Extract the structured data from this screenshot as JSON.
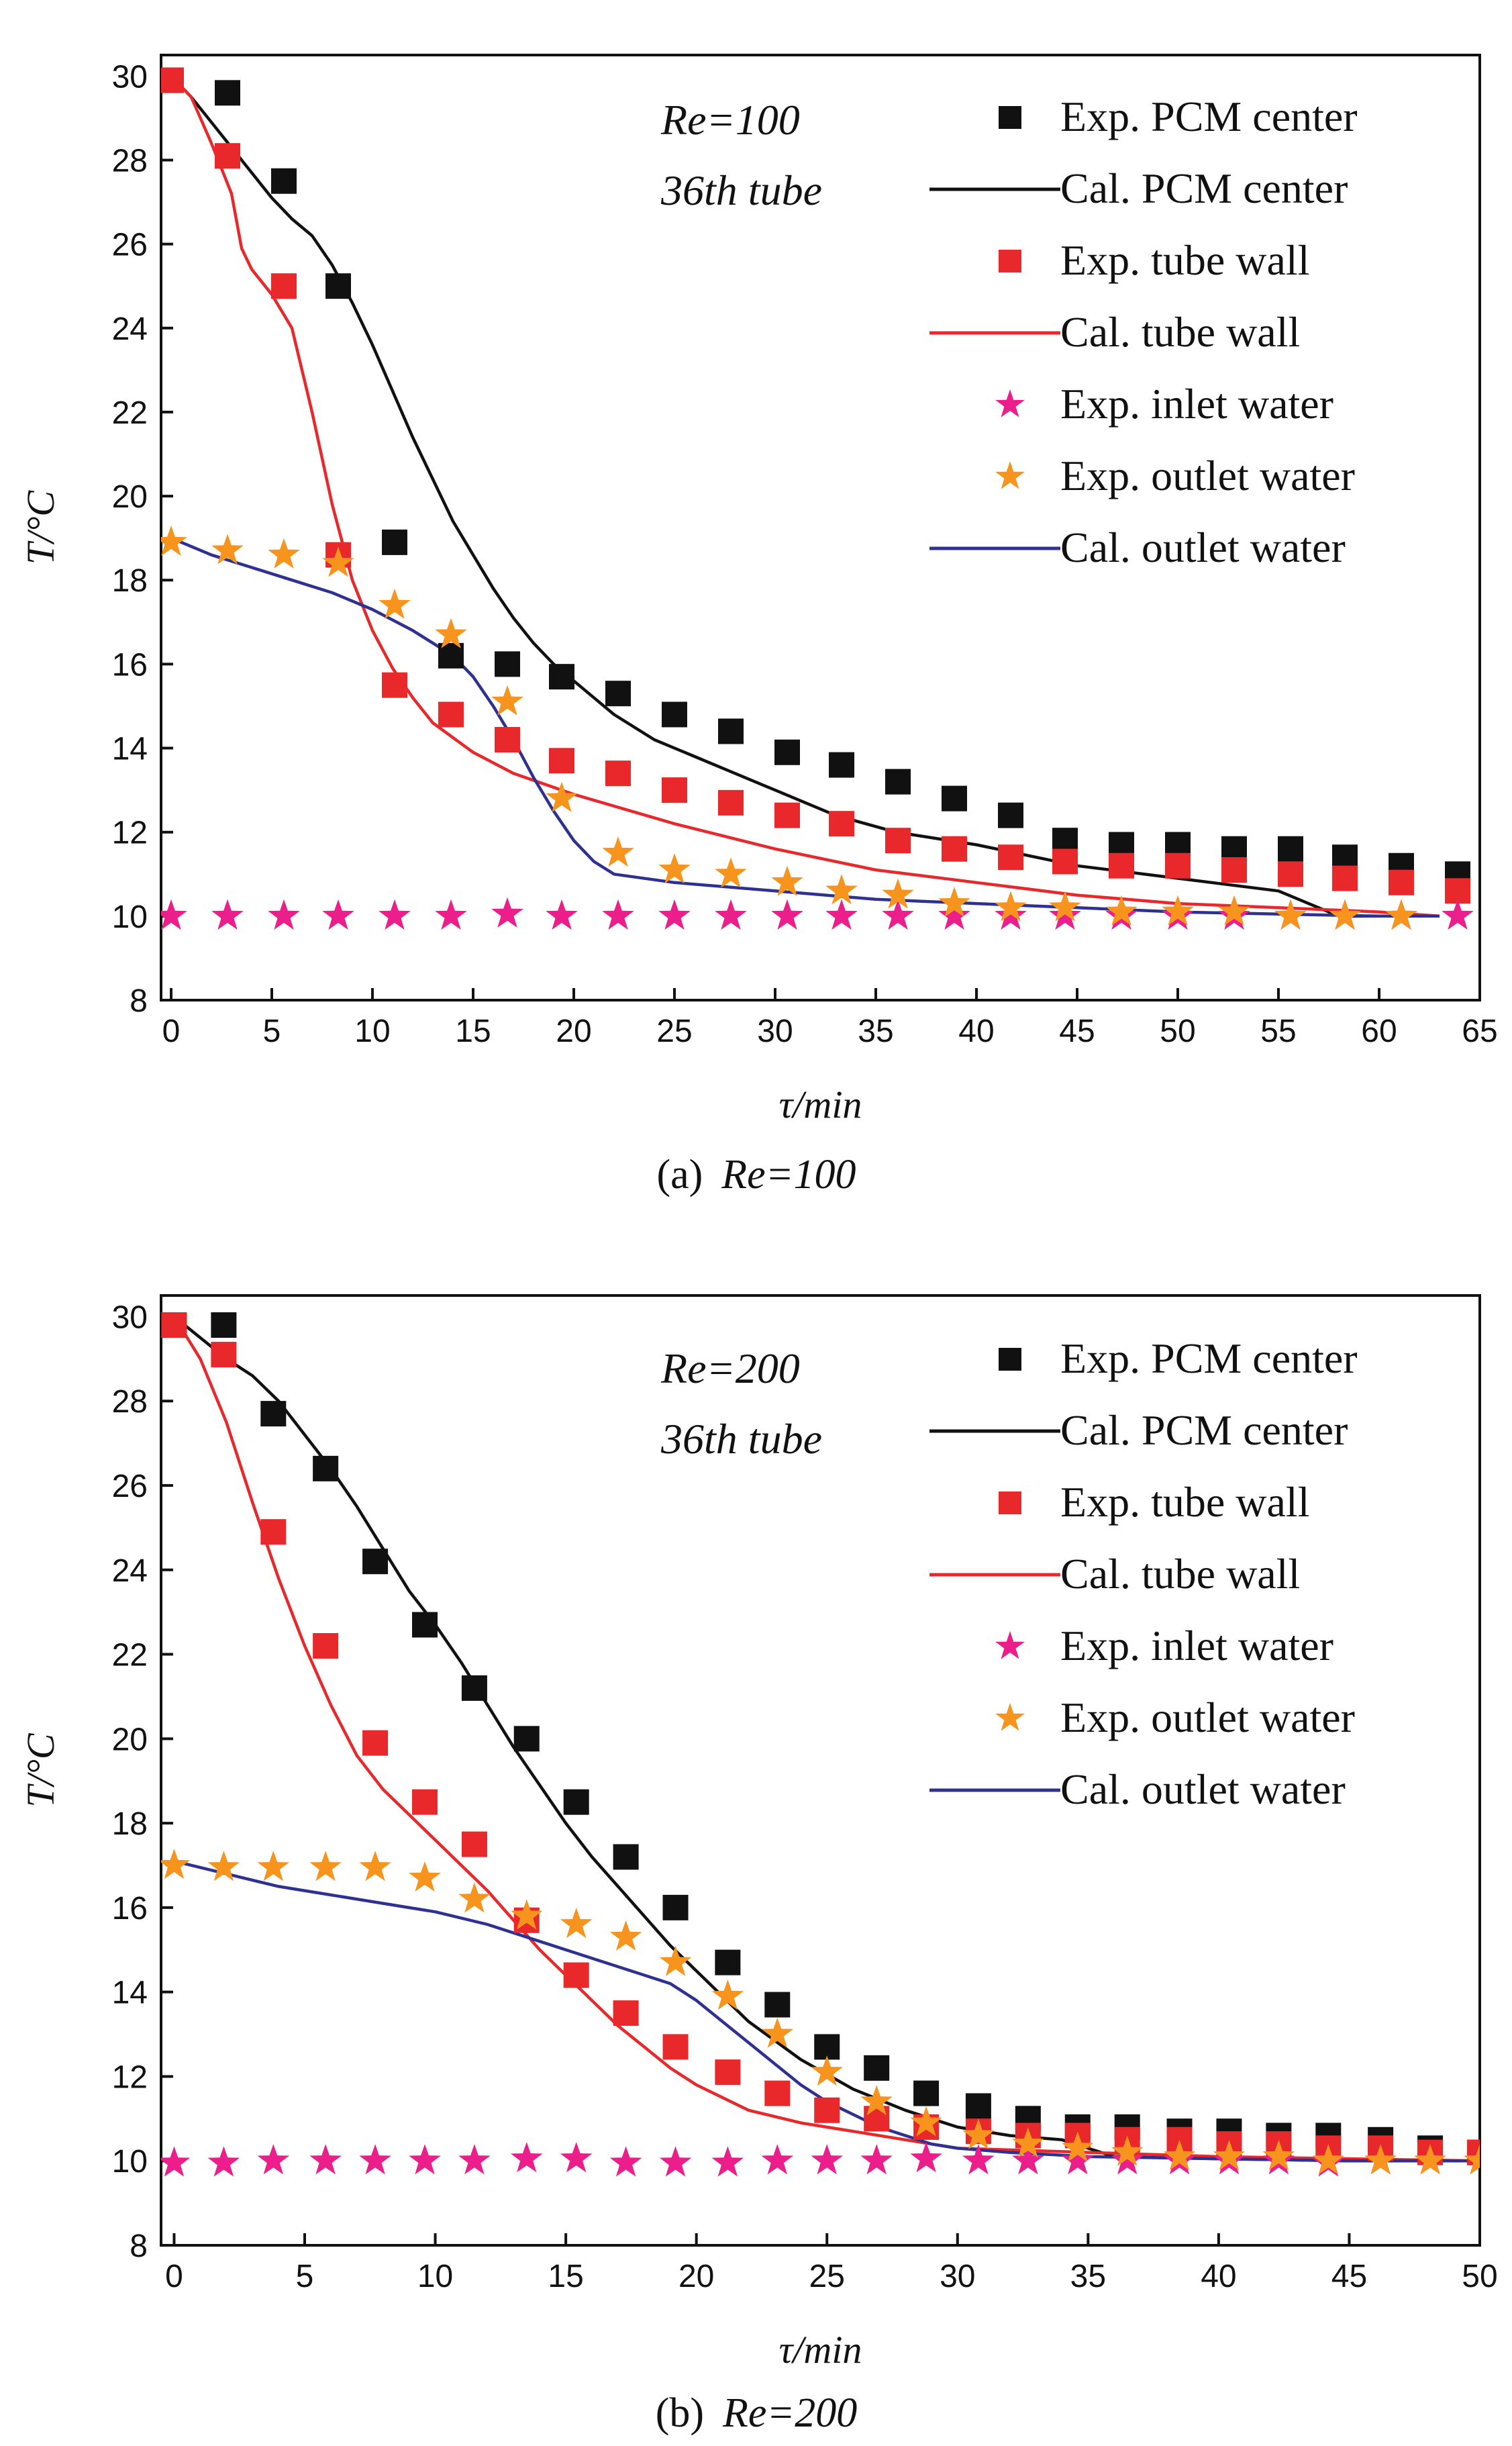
{
  "chart_data": [
    {
      "type": "line",
      "panel": "a",
      "caption_label": "(a)",
      "caption_re": "Re=100",
      "xlabel": "τ/min",
      "ylabel": "T/°C",
      "xlim": [
        -0.5,
        65
      ],
      "ylim": [
        8,
        30.5
      ],
      "xticks": [
        0,
        5,
        10,
        15,
        20,
        25,
        30,
        35,
        40,
        45,
        50,
        55,
        60,
        65
      ],
      "yticks": [
        8,
        10,
        12,
        14,
        16,
        18,
        20,
        22,
        24,
        26,
        28,
        30
      ],
      "annotations": [
        "Re=100",
        "36th tube"
      ],
      "series": [
        {
          "name": "Exp. PCM center",
          "kind": "scatter",
          "marker": "square",
          "color": "#111111",
          "x": [
            0,
            2.8,
            5.6,
            8.3,
            11.1,
            13.9,
            16.7,
            19.4,
            22.2,
            25,
            27.8,
            30.6,
            33.3,
            36.1,
            38.9,
            41.7,
            44.4,
            47.2,
            50,
            52.8,
            55.6,
            58.3,
            61.1,
            63.9
          ],
          "y": [
            29.9,
            29.6,
            27.5,
            25,
            18.9,
            16.2,
            16,
            15.7,
            15.3,
            14.8,
            14.4,
            13.9,
            13.6,
            13.2,
            12.8,
            12.4,
            11.8,
            11.7,
            11.7,
            11.6,
            11.6,
            11.4,
            11.2,
            11
          ]
        },
        {
          "name": "Cal. PCM center",
          "kind": "line",
          "color": "#111111",
          "x": [
            0,
            1,
            2,
            3,
            4,
            5,
            6,
            7,
            8,
            9,
            10,
            11,
            12,
            13,
            14,
            15,
            16,
            17,
            18,
            19,
            20,
            22,
            24,
            26,
            28,
            30,
            33,
            36,
            40,
            45,
            50,
            55,
            58,
            60,
            63
          ],
          "y": [
            30,
            29.5,
            28.9,
            28.3,
            27.7,
            27.1,
            26.6,
            26.2,
            25.5,
            24.6,
            23.6,
            22.5,
            21.4,
            20.4,
            19.4,
            18.6,
            17.8,
            17.1,
            16.5,
            16,
            15.6,
            14.8,
            14.2,
            13.8,
            13.4,
            13,
            12.4,
            12,
            11.7,
            11.2,
            10.9,
            10.6,
            10,
            10,
            10
          ]
        },
        {
          "name": "Exp. tube wall",
          "kind": "scatter",
          "marker": "square",
          "color": "#e8282a",
          "x": [
            0,
            2.8,
            5.6,
            8.3,
            11.1,
            13.9,
            16.7,
            19.4,
            22.2,
            25,
            27.8,
            30.6,
            33.3,
            36.1,
            38.9,
            41.7,
            44.4,
            47.2,
            50,
            52.8,
            55.6,
            58.3,
            61.1,
            63.9
          ],
          "y": [
            29.9,
            28.1,
            25,
            18.6,
            15.5,
            14.8,
            14.2,
            13.7,
            13.4,
            13,
            12.7,
            12.4,
            12.2,
            11.8,
            11.6,
            11.4,
            11.3,
            11.2,
            11.2,
            11.1,
            11,
            10.9,
            10.8,
            10.6
          ]
        },
        {
          "name": "Cal. tube wall",
          "kind": "line",
          "color": "#e8282a",
          "x": [
            0,
            1,
            2,
            3,
            3.5,
            4,
            5,
            6,
            7,
            8,
            9,
            10,
            11,
            12,
            13,
            15,
            17,
            20,
            25,
            30,
            35,
            40,
            45,
            50,
            55,
            60,
            63
          ],
          "y": [
            30,
            29.5,
            28.4,
            27.2,
            25.9,
            25.4,
            24.8,
            24,
            22,
            19.8,
            18,
            16.8,
            15.9,
            15.2,
            14.6,
            13.9,
            13.4,
            12.9,
            12.2,
            11.6,
            11.1,
            10.8,
            10.5,
            10.3,
            10.2,
            10.1,
            10
          ]
        },
        {
          "name": "Exp. inlet water",
          "kind": "scatter",
          "marker": "star",
          "color": "#ec1e8c",
          "x": [
            0,
            2.8,
            5.6,
            8.3,
            11.1,
            13.9,
            16.7,
            19.4,
            22.2,
            25,
            27.8,
            30.6,
            33.3,
            36.1,
            38.9,
            41.7,
            44.4,
            47.2,
            50,
            52.8,
            55.6,
            58.3,
            61.1,
            63.9
          ],
          "y": [
            10,
            10,
            10,
            10,
            10,
            10,
            10.05,
            10,
            10,
            10,
            10,
            10,
            10,
            10,
            10,
            10,
            10,
            10,
            10,
            10,
            10,
            10,
            10,
            10
          ]
        },
        {
          "name": "Exp. outlet water",
          "kind": "scatter",
          "marker": "star",
          "color": "#f7941d",
          "x": [
            0,
            2.8,
            5.6,
            8.3,
            11.1,
            13.9,
            16.7,
            19.4,
            22.2,
            25,
            27.8,
            30.6,
            33.3,
            36.1,
            38.9,
            41.7,
            44.4,
            47.2,
            50,
            52.8,
            55.6,
            58.3,
            61.1
          ],
          "y": [
            18.9,
            18.7,
            18.6,
            18.4,
            17.4,
            16.7,
            15.1,
            12.8,
            11.5,
            11.1,
            11,
            10.8,
            10.6,
            10.5,
            10.3,
            10.2,
            10.2,
            10.1,
            10.1,
            10.1,
            10,
            10,
            10
          ]
        },
        {
          "name": "Cal. outlet water",
          "kind": "line",
          "color": "#2e3192",
          "x": [
            0,
            2,
            4,
            6,
            8,
            10,
            12,
            14,
            15,
            16,
            17,
            18,
            19,
            20,
            21,
            22,
            25,
            30,
            35,
            40,
            45,
            50,
            55,
            60,
            63
          ],
          "y": [
            19,
            18.6,
            18.3,
            18,
            17.7,
            17.3,
            16.8,
            16.2,
            15.7,
            15,
            14.2,
            13.3,
            12.5,
            11.8,
            11.3,
            11,
            10.8,
            10.6,
            10.4,
            10.3,
            10.2,
            10.1,
            10.05,
            10,
            10
          ]
        }
      ]
    },
    {
      "type": "line",
      "panel": "b",
      "caption_label": "(b)",
      "caption_re": "Re=200",
      "xlabel": "τ/min",
      "ylabel": "T/°C",
      "xlim": [
        -0.5,
        50
      ],
      "ylim": [
        8,
        30.5
      ],
      "xticks": [
        0,
        5,
        10,
        15,
        20,
        25,
        30,
        35,
        40,
        45,
        50
      ],
      "yticks": [
        8,
        10,
        12,
        14,
        16,
        18,
        20,
        22,
        24,
        26,
        28,
        30
      ],
      "annotations": [
        "Re=200",
        "36th tube"
      ],
      "series": [
        {
          "name": "Exp. PCM center",
          "kind": "scatter",
          "marker": "square",
          "color": "#111111",
          "x": [
            0,
            1.9,
            3.8,
            5.8,
            7.7,
            9.6,
            11.5,
            13.5,
            15.4,
            17.3,
            19.2,
            21.2,
            23.1,
            25,
            26.9,
            28.8,
            30.8,
            32.7,
            34.6,
            36.5,
            38.5,
            40.4,
            42.3,
            44.2,
            46.2,
            48.1,
            50
          ],
          "y": [
            29.8,
            29.8,
            27.7,
            26.4,
            24.2,
            22.7,
            21.2,
            20,
            18.5,
            17.2,
            16,
            14.7,
            13.7,
            12.7,
            12.2,
            11.6,
            11.3,
            11,
            10.8,
            10.8,
            10.7,
            10.7,
            10.6,
            10.6,
            10.5,
            10.3,
            10.2
          ]
        },
        {
          "name": "Cal. PCM center",
          "kind": "line",
          "color": "#111111",
          "x": [
            0,
            1,
            2,
            3,
            4,
            5,
            6,
            7,
            8,
            9,
            10,
            11,
            12,
            13,
            14,
            15,
            16,
            17,
            18,
            19,
            20,
            21,
            22,
            24,
            26,
            28,
            30,
            32,
            34,
            35,
            36,
            40,
            45,
            50
          ],
          "y": [
            30,
            29.5,
            29,
            28.6,
            28,
            27.2,
            26.4,
            25.5,
            24.5,
            23.5,
            22.7,
            21.8,
            20.8,
            19.8,
            18.9,
            18,
            17.2,
            16.5,
            15.8,
            15.1,
            14.5,
            13.9,
            13.3,
            12.4,
            11.7,
            11.2,
            10.8,
            10.6,
            10.5,
            10.3,
            10.1,
            10.05,
            10,
            10
          ]
        },
        {
          "name": "Exp. tube wall",
          "kind": "scatter",
          "marker": "square",
          "color": "#e8282a",
          "x": [
            0,
            1.9,
            3.8,
            5.8,
            7.7,
            9.6,
            11.5,
            13.5,
            15.4,
            17.3,
            19.2,
            21.2,
            23.1,
            25,
            26.9,
            28.8,
            30.8,
            32.7,
            34.6,
            36.5,
            38.5,
            40.4,
            42.3,
            44.2,
            46.2,
            48.1,
            50
          ],
          "y": [
            29.8,
            29.1,
            24.9,
            22.2,
            19.9,
            18.5,
            17.5,
            15.7,
            14.4,
            13.5,
            12.7,
            12.1,
            11.6,
            11.2,
            11,
            10.8,
            10.7,
            10.6,
            10.6,
            10.5,
            10.5,
            10.4,
            10.4,
            10.3,
            10.3,
            10.2,
            10.2
          ]
        },
        {
          "name": "Cal. tube wall",
          "kind": "line",
          "color": "#e8282a",
          "x": [
            0,
            1,
            2,
            3,
            4,
            5,
            6,
            7,
            8,
            9,
            10,
            11,
            12,
            13,
            14,
            15,
            16,
            17,
            18,
            19,
            20,
            22,
            24,
            26,
            28,
            30,
            35,
            40,
            45,
            50
          ],
          "y": [
            30,
            29,
            27.5,
            25.6,
            23.8,
            22.2,
            20.8,
            19.6,
            18.8,
            18.2,
            17.6,
            17,
            16.4,
            15.7,
            15,
            14.4,
            13.8,
            13.2,
            12.7,
            12.2,
            11.8,
            11.2,
            10.9,
            10.7,
            10.5,
            10.3,
            10.2,
            10.1,
            10.05,
            10
          ]
        },
        {
          "name": "Exp. inlet water",
          "kind": "scatter",
          "marker": "star",
          "color": "#ec1e8c",
          "x": [
            0,
            1.9,
            3.8,
            5.8,
            7.7,
            9.6,
            11.5,
            13.5,
            15.4,
            17.3,
            19.2,
            21.2,
            23.1,
            25,
            26.9,
            28.8,
            30.8,
            32.7,
            34.6,
            36.5,
            38.5,
            40.4,
            42.3,
            44.2,
            46.2,
            48.1,
            50
          ],
          "y": [
            9.95,
            9.95,
            10,
            10,
            10,
            10,
            10,
            10.05,
            10.05,
            9.95,
            9.95,
            9.95,
            10,
            10,
            10,
            10.05,
            10,
            10,
            10,
            10,
            10,
            10,
            10,
            9.95,
            10,
            10,
            10
          ]
        },
        {
          "name": "Exp. outlet water",
          "kind": "scatter",
          "marker": "star",
          "color": "#f7941d",
          "x": [
            0,
            1.9,
            3.8,
            5.8,
            7.7,
            9.6,
            11.5,
            13.5,
            15.4,
            17.3,
            19.2,
            21.2,
            23.1,
            25,
            26.9,
            28.8,
            30.8,
            32.7,
            34.6,
            36.5,
            38.5,
            40.4,
            42.3,
            44.2,
            46.2,
            48.1,
            50
          ],
          "y": [
            17,
            16.95,
            16.95,
            16.95,
            16.95,
            16.7,
            16.2,
            15.8,
            15.6,
            15.3,
            14.7,
            13.9,
            13,
            12.1,
            11.4,
            10.9,
            10.6,
            10.4,
            10.3,
            10.2,
            10.1,
            10.1,
            10.1,
            10,
            10,
            10,
            10
          ]
        },
        {
          "name": "Cal. outlet water",
          "kind": "line",
          "color": "#2e3192",
          "x": [
            0,
            2,
            4,
            6,
            8,
            10,
            12,
            14,
            16,
            18,
            19,
            20,
            21,
            22,
            23,
            24,
            25,
            26,
            27,
            28,
            29,
            30,
            32,
            35,
            40,
            45,
            50
          ],
          "y": [
            17.1,
            16.8,
            16.5,
            16.3,
            16.1,
            15.9,
            15.6,
            15.2,
            14.8,
            14.4,
            14.2,
            13.8,
            13.3,
            12.8,
            12.3,
            11.8,
            11.4,
            11.1,
            10.8,
            10.6,
            10.4,
            10.3,
            10.2,
            10.1,
            10.05,
            10,
            10
          ]
        }
      ]
    }
  ]
}
